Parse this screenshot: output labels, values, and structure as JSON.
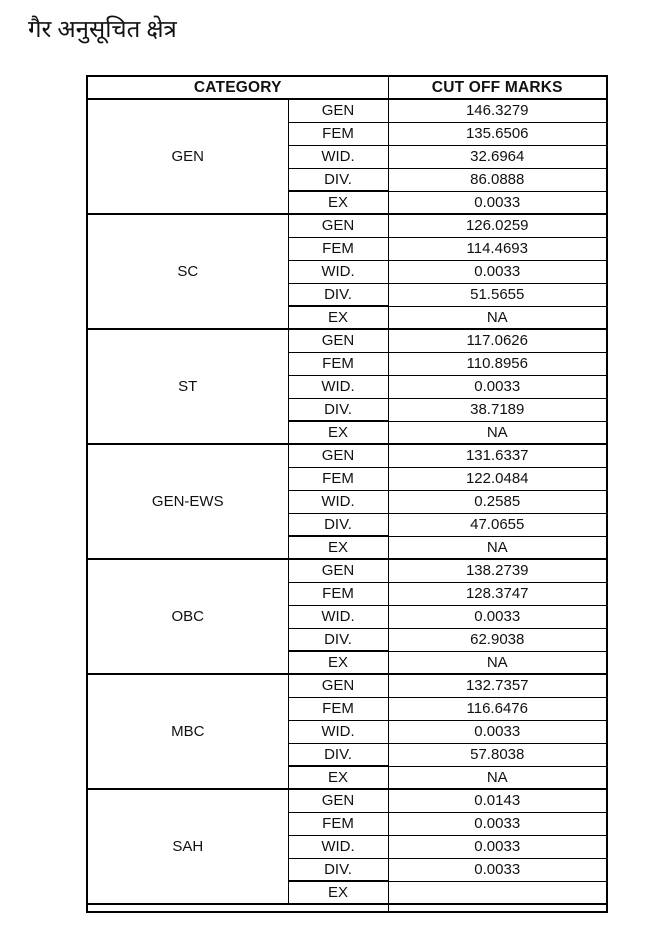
{
  "page": {
    "title": "गैर अनुसूचित क्षेत्र"
  },
  "table": {
    "headers": {
      "category": "CATEGORY",
      "cutoff": "CUT OFF MARKS"
    },
    "sub_labels": [
      "GEN",
      "FEM",
      "WID.",
      "DIV.",
      "EX"
    ],
    "groups": [
      {
        "category": "GEN",
        "rows": [
          {
            "label": "GEN",
            "value": "146.3279"
          },
          {
            "label": "FEM",
            "value": "135.6506"
          },
          {
            "label": "WID.",
            "value": "32.6964"
          },
          {
            "label": "DIV.",
            "value": "86.0888"
          },
          {
            "label": "EX",
            "value": "0.0033"
          }
        ]
      },
      {
        "category": "SC",
        "rows": [
          {
            "label": "GEN",
            "value": "126.0259"
          },
          {
            "label": "FEM",
            "value": "114.4693"
          },
          {
            "label": "WID.",
            "value": "0.0033"
          },
          {
            "label": "DIV.",
            "value": "51.5655"
          },
          {
            "label": "EX",
            "value": "NA"
          }
        ]
      },
      {
        "category": "ST",
        "rows": [
          {
            "label": "GEN",
            "value": "117.0626"
          },
          {
            "label": "FEM",
            "value": "110.8956"
          },
          {
            "label": "WID.",
            "value": "0.0033"
          },
          {
            "label": "DIV.",
            "value": "38.7189"
          },
          {
            "label": "EX",
            "value": "NA"
          }
        ]
      },
      {
        "category": "GEN-EWS",
        "rows": [
          {
            "label": "GEN",
            "value": "131.6337"
          },
          {
            "label": "FEM",
            "value": "122.0484"
          },
          {
            "label": "WID.",
            "value": "0.2585"
          },
          {
            "label": "DIV.",
            "value": "47.0655"
          },
          {
            "label": "EX",
            "value": "NA"
          }
        ]
      },
      {
        "category": "OBC",
        "rows": [
          {
            "label": "GEN",
            "value": "138.2739"
          },
          {
            "label": "FEM",
            "value": "128.3747"
          },
          {
            "label": "WID.",
            "value": "0.0033"
          },
          {
            "label": "DIV.",
            "value": "62.9038"
          },
          {
            "label": "EX",
            "value": "NA"
          }
        ]
      },
      {
        "category": "MBC",
        "rows": [
          {
            "label": "GEN",
            "value": "132.7357"
          },
          {
            "label": "FEM",
            "value": "116.6476"
          },
          {
            "label": "WID.",
            "value": "0.0033"
          },
          {
            "label": "DIV.",
            "value": "57.8038"
          },
          {
            "label": "EX",
            "value": "NA"
          }
        ]
      },
      {
        "category": "SAH",
        "rows": [
          {
            "label": "GEN",
            "value": "0.0143"
          },
          {
            "label": "FEM",
            "value": "0.0033"
          },
          {
            "label": "WID.",
            "value": "0.0033"
          },
          {
            "label": "DIV.",
            "value": "0.0033"
          },
          {
            "label": "EX",
            "value": ""
          }
        ]
      }
    ]
  }
}
